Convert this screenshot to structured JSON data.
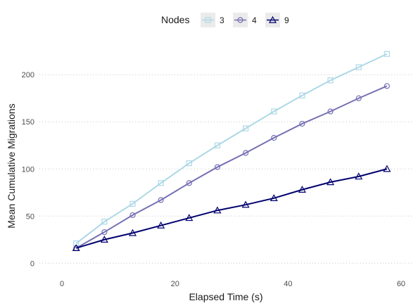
{
  "chart_data": {
    "type": "line",
    "title": "",
    "xlabel": "Elapsed Time (s)",
    "ylabel": "Mean Cumulative Migrations",
    "xlim": [
      -4,
      62
    ],
    "ylim": [
      -8,
      233
    ],
    "x_ticks": [
      0,
      20,
      40,
      60
    ],
    "y_ticks": [
      0,
      50,
      100,
      150,
      200
    ],
    "grid": "horizontal dotted",
    "legend": {
      "title": "Nodes",
      "position": "top"
    },
    "x": [
      2.5,
      7.5,
      12.5,
      17.5,
      22.5,
      27.5,
      32.5,
      37.5,
      42.5,
      47.5,
      52.5,
      57.5
    ],
    "series": [
      {
        "name": "3",
        "color": "#add8e6",
        "marker": "square",
        "values": [
          21,
          44,
          63,
          85,
          106,
          125,
          143,
          161,
          178,
          194,
          208,
          222
        ]
      },
      {
        "name": "4",
        "color": "#7570b3",
        "marker": "circle",
        "values": [
          16,
          33,
          51,
          67,
          85,
          102,
          117,
          133,
          148,
          161,
          175,
          188
        ]
      },
      {
        "name": "9",
        "color": "#00006e",
        "marker": "triangle",
        "values": [
          16,
          25,
          32,
          40,
          48,
          56,
          62,
          69,
          78,
          86,
          92,
          100
        ]
      }
    ]
  }
}
